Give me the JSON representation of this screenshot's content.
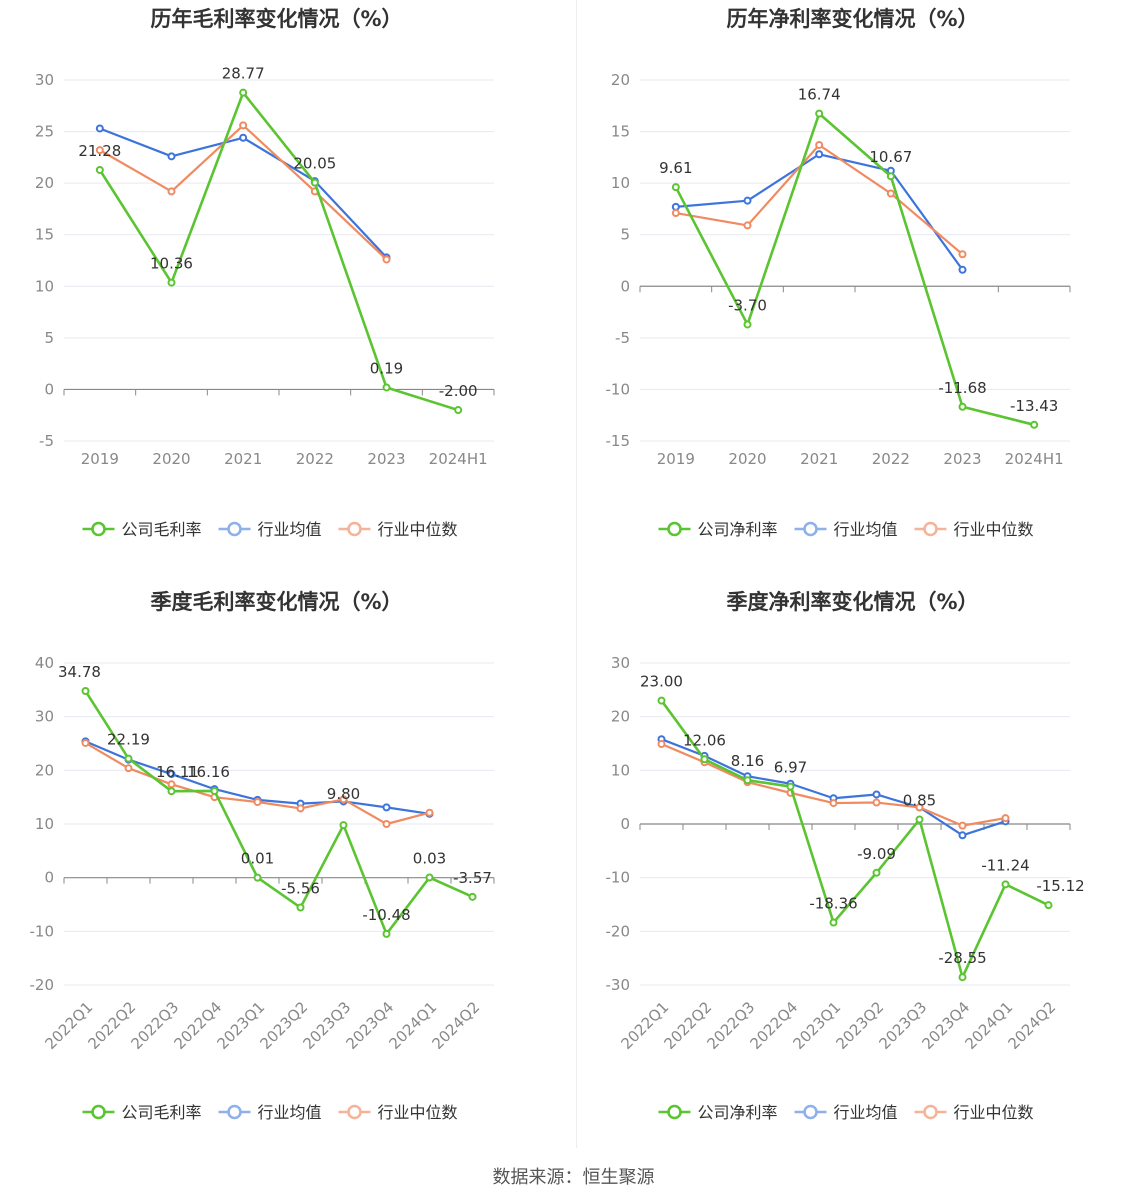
{
  "source_text": "数据来源：恒生聚源",
  "colors": {
    "company": "#5ac431",
    "industry_avg": "#3d74dc",
    "industry_median": "#f08a60"
  },
  "chart_data": [
    {
      "type": "line",
      "title": "历年毛利率变化情况（%）",
      "categories": [
        "2019",
        "2020",
        "2021",
        "2022",
        "2023",
        "2024H1"
      ],
      "ylim": [
        -5,
        30
      ],
      "yticks": [
        30,
        25,
        20,
        15,
        10,
        5,
        0,
        -5
      ],
      "grid": true,
      "legend_position": "bottom",
      "x_rotated": false,
      "series": [
        {
          "name": "公司毛利率",
          "values": [
            21.28,
            10.36,
            28.77,
            20.05,
            0.19,
            -2.0
          ],
          "labels": [
            "21.28",
            "10.36",
            "28.77",
            "20.05",
            "0.19",
            "-2.00"
          ]
        },
        {
          "name": "行业均值",
          "values": [
            25.3,
            22.6,
            24.4,
            20.2,
            12.8,
            null
          ]
        },
        {
          "name": "行业中位数",
          "values": [
            23.2,
            19.2,
            25.6,
            19.2,
            12.6,
            null
          ]
        }
      ]
    },
    {
      "type": "line",
      "title": "历年净利率变化情况（%）",
      "categories": [
        "2019",
        "2020",
        "2021",
        "2022",
        "2023",
        "2024H1"
      ],
      "ylim": [
        -15,
        20
      ],
      "yticks": [
        20,
        15,
        10,
        5,
        0,
        -5,
        -10,
        -15
      ],
      "grid": true,
      "legend_position": "bottom",
      "x_rotated": false,
      "series": [
        {
          "name": "公司净利率",
          "values": [
            9.61,
            -3.7,
            16.74,
            10.67,
            -11.68,
            -13.43
          ],
          "labels": [
            "9.61",
            "-3.70",
            "16.74",
            "10.67",
            "-11.68",
            "-13.43"
          ]
        },
        {
          "name": "行业均值",
          "values": [
            7.7,
            8.3,
            12.8,
            11.2,
            1.6,
            null
          ]
        },
        {
          "name": "行业中位数",
          "values": [
            7.1,
            5.9,
            13.7,
            9.0,
            3.1,
            null
          ]
        }
      ]
    },
    {
      "type": "line",
      "title": "季度毛利率变化情况（%）",
      "categories": [
        "2022Q1",
        "2022Q2",
        "2022Q3",
        "2022Q4",
        "2023Q1",
        "2023Q2",
        "2023Q3",
        "2023Q4",
        "2024Q1",
        "2024Q2"
      ],
      "ylim": [
        -20,
        40
      ],
      "yticks": [
        40,
        30,
        20,
        10,
        0,
        -10,
        -20
      ],
      "grid": true,
      "legend_position": "bottom",
      "x_rotated": true,
      "series": [
        {
          "name": "公司毛利率",
          "values": [
            34.78,
            22.19,
            16.11,
            16.16,
            0.01,
            -5.56,
            9.8,
            -10.48,
            0.03,
            -3.57
          ],
          "labels": [
            "34.78",
            "22.19",
            "16.11",
            "16.16",
            "0.01",
            "-5.56",
            "9.80",
            "-10.48",
            "0.03",
            "-3.57"
          ]
        },
        {
          "name": "行业均值",
          "values": [
            25.4,
            22.0,
            19.3,
            16.5,
            14.5,
            13.8,
            14.2,
            13.1,
            11.9,
            null
          ]
        },
        {
          "name": "行业中位数",
          "values": [
            25.1,
            20.4,
            17.4,
            15.0,
            14.1,
            12.9,
            14.6,
            10.0,
            12.1,
            null
          ]
        }
      ]
    },
    {
      "type": "line",
      "title": "季度净利率变化情况（%）",
      "categories": [
        "2022Q1",
        "2022Q2",
        "2022Q3",
        "2022Q4",
        "2023Q1",
        "2023Q2",
        "2023Q3",
        "2023Q4",
        "2024Q1",
        "2024Q2"
      ],
      "ylim": [
        -30,
        30
      ],
      "yticks": [
        30,
        20,
        10,
        0,
        -10,
        -20,
        -30
      ],
      "grid": true,
      "legend_position": "bottom",
      "x_rotated": true,
      "series": [
        {
          "name": "公司净利率",
          "values": [
            23.0,
            12.06,
            8.16,
            6.97,
            -18.36,
            -9.09,
            0.85,
            -28.55,
            -11.24,
            -15.12
          ],
          "labels": [
            "23.00",
            "12.06",
            "8.16",
            "6.97",
            "-18.36",
            "-9.09",
            "0.85",
            "-28.55",
            "-11.24",
            "-15.12"
          ]
        },
        {
          "name": "行业均值",
          "values": [
            15.8,
            12.7,
            8.9,
            7.5,
            4.8,
            5.5,
            3.1,
            -2.1,
            0.5,
            null
          ]
        },
        {
          "name": "行业中位数",
          "values": [
            14.9,
            11.5,
            7.8,
            5.8,
            3.9,
            4.0,
            3.1,
            -0.3,
            1.1,
            null
          ]
        }
      ]
    }
  ]
}
